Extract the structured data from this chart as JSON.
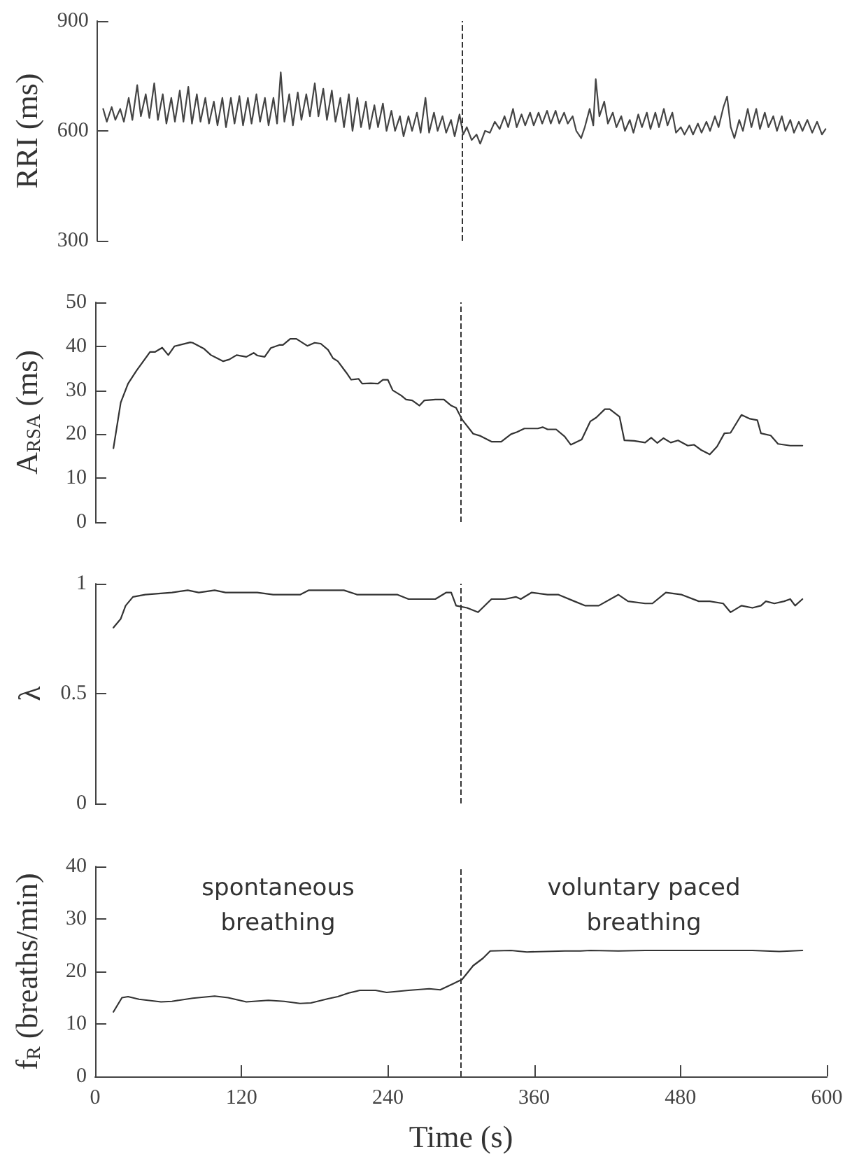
{
  "chart_data": [
    {
      "type": "line",
      "ylabel": "RRI (ms)",
      "xlim": [
        0,
        600
      ],
      "ylim": [
        300,
        900
      ],
      "yticks": [
        300,
        600,
        900
      ],
      "tick_labels": "y",
      "marker": "none",
      "line_style": "solid",
      "ref_lines": [
        {
          "axis": "x",
          "value": 300,
          "line_style": "dashed",
          "color": "#333333"
        }
      ],
      "series": [
        {
          "color": "#444444",
          "x": [
            5,
            8,
            12,
            15,
            19,
            22,
            26,
            29,
            33,
            36,
            40,
            43,
            47,
            50,
            54,
            57,
            61,
            64,
            68,
            71,
            75,
            78,
            82,
            85,
            89,
            92,
            96,
            99,
            103,
            106,
            110,
            113,
            117,
            120,
            124,
            127,
            131,
            134,
            138,
            141,
            145,
            148,
            151,
            154,
            158,
            161,
            165,
            168,
            172,
            175,
            179,
            182,
            186,
            189,
            193,
            196,
            200,
            203,
            207,
            210,
            214,
            217,
            221,
            224,
            228,
            231,
            235,
            238,
            242,
            245,
            249,
            252,
            256,
            259,
            263,
            266,
            270,
            273,
            277,
            280,
            284,
            287,
            291,
            294,
            298,
            301,
            304,
            308,
            312,
            315,
            319,
            323,
            327,
            331,
            335,
            338,
            342,
            345,
            349,
            352,
            356,
            359,
            363,
            366,
            370,
            373,
            377,
            380,
            384,
            387,
            391,
            394,
            398,
            401,
            405,
            408,
            410,
            413,
            417,
            420,
            424,
            427,
            431,
            434,
            438,
            441,
            445,
            448,
            452,
            455,
            459,
            462,
            466,
            469,
            473,
            476,
            480,
            483,
            487,
            490,
            494,
            497,
            501,
            504,
            508,
            511,
            515,
            518,
            521,
            524,
            528,
            531,
            535,
            538,
            542,
            545,
            549,
            552,
            556,
            559,
            563,
            566,
            570,
            573,
            577,
            580,
            584,
            588,
            592,
            596,
            599
          ],
          "values": [
            660,
            625,
            665,
            630,
            660,
            625,
            690,
            630,
            725,
            640,
            700,
            635,
            730,
            630,
            700,
            620,
            690,
            625,
            710,
            625,
            720,
            620,
            700,
            625,
            690,
            620,
            680,
            615,
            690,
            610,
            690,
            620,
            695,
            615,
            690,
            620,
            700,
            625,
            690,
            615,
            690,
            620,
            760,
            625,
            700,
            615,
            705,
            630,
            700,
            640,
            730,
            640,
            715,
            630,
            710,
            625,
            690,
            610,
            700,
            600,
            690,
            610,
            680,
            605,
            670,
            610,
            675,
            600,
            655,
            600,
            640,
            585,
            640,
            600,
            650,
            595,
            690,
            595,
            650,
            600,
            640,
            595,
            630,
            585,
            645,
            590,
            610,
            575,
            590,
            565,
            600,
            595,
            625,
            605,
            640,
            610,
            660,
            610,
            645,
            615,
            650,
            615,
            650,
            620,
            655,
            620,
            655,
            620,
            650,
            620,
            640,
            600,
            580,
            610,
            660,
            615,
            741,
            640,
            680,
            620,
            650,
            610,
            640,
            600,
            630,
            595,
            645,
            610,
            650,
            605,
            650,
            610,
            660,
            615,
            650,
            595,
            610,
            590,
            615,
            590,
            620,
            595,
            625,
            600,
            640,
            610,
            665,
            694,
            610,
            580,
            630,
            600,
            660,
            610,
            660,
            605,
            650,
            610,
            640,
            600,
            640,
            600,
            630,
            595,
            625,
            600,
            630,
            595,
            625,
            590,
            605
          ]
        }
      ]
    },
    {
      "type": "line",
      "ylabel": "A$_{RSA}$ (ms)",
      "xlim": [
        0,
        600
      ],
      "ylim": [
        0,
        50
      ],
      "yticks": [
        0,
        10,
        20,
        30,
        40,
        50
      ],
      "tick_labels": "y",
      "marker": "none",
      "line_style": "solid",
      "ref_lines": [
        {
          "axis": "x",
          "value": 300,
          "line_style": "dashed",
          "color": "#333333"
        }
      ],
      "series": [
        {
          "color": "#333333",
          "x": [
            15,
            21,
            27,
            34,
            45,
            49,
            55,
            60,
            65,
            78,
            80,
            89,
            95,
            105,
            110,
            116,
            124,
            130,
            133,
            139,
            144,
            151,
            154,
            160,
            165,
            174,
            180,
            185,
            191,
            195,
            199,
            206,
            210,
            216,
            219,
            226,
            232,
            236,
            240,
            244,
            251,
            255,
            260,
            266,
            270,
            279,
            286,
            292,
            296,
            301,
            310,
            316,
            325,
            333,
            341,
            346,
            352,
            363,
            367,
            371,
            378,
            385,
            390,
            399,
            406,
            411,
            418,
            422,
            430,
            434,
            442,
            451,
            456,
            461,
            466,
            472,
            478,
            486,
            491,
            497,
            504,
            510,
            516,
            521,
            530,
            537,
            543,
            546,
            554,
            560,
            570,
            580
          ],
          "values": [
            16.8,
            27.2,
            31.5,
            34.5,
            38.7,
            38.7,
            39.7,
            38,
            40,
            40.9,
            40.8,
            39.5,
            38,
            36.6,
            37,
            38,
            37.6,
            38.5,
            37.9,
            37.6,
            39.6,
            40.3,
            40.3,
            41.7,
            41.7,
            40.1,
            40.8,
            40.6,
            39.2,
            37.3,
            36.6,
            34,
            32.4,
            32.6,
            31.5,
            31.6,
            31.5,
            32.4,
            32.4,
            30,
            28.8,
            27.9,
            27.7,
            26.5,
            27.7,
            27.9,
            27.9,
            26.5,
            26,
            23.3,
            20.1,
            19.6,
            18.3,
            18.3,
            20,
            20.5,
            21.3,
            21.3,
            21.6,
            21.1,
            21.1,
            19.5,
            17.6,
            18.8,
            22.9,
            23.8,
            25.7,
            25.7,
            24,
            18.6,
            18.5,
            18.1,
            19.2,
            18,
            19.1,
            18.1,
            18.6,
            17.4,
            17.6,
            16.4,
            15.4,
            17.2,
            20.2,
            20.3,
            24.4,
            23.5,
            23.2,
            20.2,
            19.7,
            17.8,
            17.4,
            17.4
          ]
        }
      ]
    },
    {
      "type": "line",
      "ylabel": "λ",
      "xlim": [
        0,
        600
      ],
      "ylim": [
        0,
        1
      ],
      "yticks": [
        0,
        0.5,
        1
      ],
      "tick_labels": "y",
      "marker": "none",
      "line_style": "solid",
      "ref_lines": [
        {
          "axis": "x",
          "value": 300,
          "line_style": "dashed",
          "color": "#333333"
        }
      ],
      "series": [
        {
          "color": "#333333",
          "x": [
            15,
            21,
            25,
            31,
            41,
            63,
            76,
            85,
            98,
            107,
            133,
            146,
            155,
            168,
            175,
            204,
            215,
            226,
            248,
            257,
            270,
            279,
            288,
            292,
            296,
            305,
            314,
            325,
            336,
            345,
            349,
            358,
            371,
            380,
            393,
            402,
            413,
            429,
            437,
            451,
            457,
            468,
            481,
            495,
            504,
            515,
            521,
            530,
            539,
            546,
            550,
            557,
            565,
            570,
            574,
            580
          ],
          "values": [
            0.8,
            0.84,
            0.9,
            0.94,
            0.95,
            0.96,
            0.97,
            0.96,
            0.97,
            0.96,
            0.96,
            0.95,
            0.95,
            0.95,
            0.97,
            0.97,
            0.95,
            0.95,
            0.95,
            0.93,
            0.93,
            0.93,
            0.96,
            0.96,
            0.9,
            0.89,
            0.87,
            0.93,
            0.93,
            0.94,
            0.93,
            0.96,
            0.95,
            0.95,
            0.92,
            0.9,
            0.9,
            0.95,
            0.92,
            0.91,
            0.91,
            0.96,
            0.95,
            0.92,
            0.92,
            0.91,
            0.87,
            0.9,
            0.89,
            0.9,
            0.92,
            0.91,
            0.92,
            0.93,
            0.9,
            0.93
          ]
        }
      ]
    },
    {
      "type": "line",
      "ylabel": "f$_{R}$ (breaths/min)",
      "xlabel": "Time (s)",
      "xlim": [
        0,
        600
      ],
      "xticks": [
        0,
        120,
        240,
        360,
        480,
        600
      ],
      "ylim": [
        0,
        40
      ],
      "yticks": [
        0,
        10,
        20,
        30,
        40
      ],
      "marker": "none",
      "line_style": "solid",
      "ref_lines": [
        {
          "axis": "x",
          "value": 300,
          "line_style": "dashed",
          "color": "#333333"
        }
      ],
      "annotations": [
        "spontaneous\nbreathing",
        "voluntary paced\nbreathing"
      ],
      "series": [
        {
          "color": "#333333",
          "x": [
            15,
            22,
            27,
            36,
            54,
            63,
            80,
            98,
            109,
            124,
            142,
            155,
            168,
            177,
            191,
            199,
            208,
            217,
            230,
            239,
            257,
            274,
            283,
            294,
            301,
            310,
            318,
            324,
            341,
            354,
            385,
            398,
            406,
            429,
            451,
            495,
            539,
            561,
            580
          ],
          "values": [
            12.3,
            15,
            15.2,
            14.7,
            14.2,
            14.3,
            14.9,
            15.3,
            15,
            14.2,
            14.5,
            14.3,
            13.9,
            14,
            14.8,
            15.2,
            15.9,
            16.4,
            16.4,
            16,
            16.4,
            16.7,
            16.5,
            17.7,
            18.5,
            21.1,
            22.5,
            23.9,
            24,
            23.7,
            23.9,
            23.9,
            24,
            23.9,
            24,
            24,
            24,
            23.8,
            24
          ]
        }
      ]
    }
  ]
}
